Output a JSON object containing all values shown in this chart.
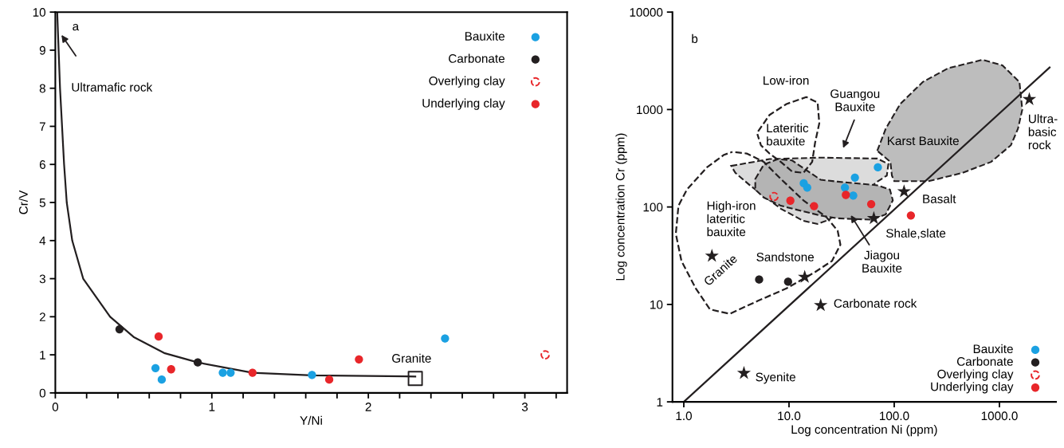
{
  "chart_data": [
    {
      "type": "scatter",
      "xlabel": "Y/Ni",
      "ylabel": "Cr/V",
      "xlim": [
        0,
        3.27
      ],
      "ylim": [
        0,
        10
      ],
      "xticks": [
        0,
        {
          "value": 0.2,
          "label": null
        },
        {
          "value": 0.4,
          "label": null
        },
        {
          "value": 0.6,
          "label": null
        },
        {
          "value": 0.8,
          "label": null
        },
        1,
        {
          "value": 1.2,
          "label": null
        },
        {
          "value": 1.4,
          "label": null
        },
        {
          "value": 1.6,
          "label": null
        },
        {
          "value": 1.8,
          "label": null
        },
        2,
        {
          "value": 2.2,
          "label": null
        },
        {
          "value": 2.4,
          "label": null
        },
        {
          "value": 2.6,
          "label": null
        },
        {
          "value": 2.8,
          "label": null
        },
        3,
        {
          "value": 3.2,
          "label": null
        }
      ],
      "yticks": [
        0,
        1,
        2,
        3,
        4,
        5,
        6,
        7,
        8,
        9,
        10
      ],
      "legend": "top right",
      "annotations": [
        "a",
        "Ultramafic rock",
        "Granite"
      ],
      "series": [
        {
          "type": "line",
          "color": "#231f20",
          "x": [
            0.012,
            0.03,
            0.056,
            0.073,
            0.108,
            0.178,
            0.35,
            0.5,
            0.7,
            0.91,
            1.26,
            1.64,
            2.3
          ],
          "values": [
            10,
            8,
            6,
            5,
            4,
            3,
            2,
            1.47,
            1.04,
            0.8,
            0.53,
            0.46,
            0.43
          ]
        },
        {
          "type": "scatter",
          "marker": "square",
          "line_style": "solid",
          "color": "#231f20",
          "x": [
            2.3
          ],
          "values": [
            0.38
          ]
        },
        {
          "name": "Bauxite",
          "marker": "circle",
          "color": "#1ba1e2",
          "x": [
            0.64,
            0.68,
            1.07,
            1.12,
            1.64,
            2.49
          ],
          "values": [
            0.65,
            0.35,
            0.53,
            0.53,
            0.47,
            1.43
          ]
        },
        {
          "name": "Carbonate",
          "marker": "circle",
          "color": "#231f20",
          "x": [
            0.41,
            0.91
          ],
          "values": [
            1.67,
            0.8
          ]
        },
        {
          "name": "Overlying clay",
          "marker": "circle",
          "color": "#e8262a",
          "line_style": "dashed",
          "x": [
            3.13
          ],
          "values": [
            1.0
          ]
        },
        {
          "name": "Underlying clay",
          "marker": "circle",
          "color": "#e8262a",
          "x": [
            0.66,
            0.74,
            1.26,
            1.75,
            1.94
          ],
          "values": [
            1.48,
            0.62,
            0.53,
            0.35,
            0.88
          ]
        }
      ]
    },
    {
      "type": "scatter",
      "xlabel": "Log concentration Ni (ppm)",
      "ylabel": "Log concentration Cr (ppm)",
      "log": "xy",
      "xlim": [
        0.78,
        3450
      ],
      "ylim": [
        1,
        10000
      ],
      "xticks": [
        {
          "value": 1,
          "label": "1.0"
        },
        {
          "value": 10,
          "label": "10.0"
        },
        {
          "value": 100,
          "label": "100.0"
        },
        {
          "value": 1000,
          "label": "1000.0"
        }
      ],
      "yticks": [
        1,
        10,
        100,
        1000,
        10000
      ],
      "legend": "bottom right",
      "annotations": [
        "b",
        "Low-iron",
        "Lateritic\nbauxite",
        "Guangou\nBauxite",
        "Karst Bauxite",
        "Ultra-\nbasic\nrock",
        "Basalt",
        "Shale,slate",
        "High-iron\nlateritic\nbauxite",
        "Granite",
        "Sandstone",
        "Jiagou\nBauxite",
        "Carbonate rock",
        "Syenite"
      ],
      "series": [
        {
          "type": "area",
          "color": "#bdbdbd",
          "line_style": "dashed",
          "x": [
            69,
            83,
            114,
            187,
            327,
            690,
            1067,
            1549,
            1649,
            1500,
            1285,
            832,
            447,
            212,
            100,
            95,
            92
          ],
          "values": [
            377,
            635,
            1140,
            1920,
            2660,
            3240,
            2840,
            1920,
            1000,
            635,
            430,
            290,
            224,
            184,
            184,
            210,
            290
          ]
        },
        {
          "type": "area",
          "color": "#dcdcdc",
          "line_style": "dashed",
          "x": [
            2.82,
            6.52,
            20,
            69,
            88,
            85,
            69,
            24,
            18.7,
            13.7,
            8.36,
            4.3,
            3.09
          ],
          "values": [
            264,
            310,
            321,
            314,
            276,
            210,
            182,
            74,
            67,
            72,
            96,
            165,
            224
          ]
        },
        {
          "type": "area",
          "color": "#b4b4b4",
          "line_style": "dashed",
          "x": [
            4.78,
            5.76,
            7.85,
            10.7,
            14.6,
            20,
            29,
            69,
            91,
            97,
            83,
            61,
            29,
            20,
            13.7,
            8.36,
            5.76,
            4.78
          ],
          "values": [
            194,
            272,
            310,
            300,
            239,
            190,
            182,
            167,
            151,
            117,
            84,
            74,
            76.5,
            81.7,
            90,
            103,
            125,
            151
          ]
        },
        {
          "type": "line",
          "color": "#231f20",
          "line_style": "dashed",
          "x": [
            5.08,
            6.52,
            9.46,
            14.6,
            18.7,
            19.4,
            17.7,
            16.6,
            13.7,
            10.7,
            8.36,
            6.52,
            5.41,
            5.0
          ],
          "values": [
            595,
            880,
            1140,
            1343,
            1178,
            723,
            458,
            290,
            224,
            231,
            290,
            354,
            430,
            560
          ]
        },
        {
          "type": "line",
          "color": "#231f20",
          "line_style": "dashed",
          "x": [
            3.09,
            3.96,
            5.76,
            8.36,
            13.7,
            22.6,
            29,
            30.8,
            25.6,
            17.7,
            9.46,
            5.08,
            2.73,
            1.77,
            1.3,
            0.95,
            0.84,
            0.89,
            1.07,
            1.66,
            2.41,
            2.9
          ],
          "values": [
            365,
            354,
            290,
            194,
            117,
            79,
            57,
            41,
            27.9,
            21.5,
            14.6,
            10.9,
            8.0,
            8.9,
            14.6,
            27.9,
            53,
            103,
            151,
            255,
            343,
            368
          ]
        },
        {
          "type": "line",
          "color": "#231f20",
          "x": [
            1,
            3000
          ],
          "values": [
            1,
            2700
          ]
        },
        {
          "type": "scatter",
          "marker": "star",
          "color": "#231f20",
          "x": [
            1923,
            124,
            64,
            1.85,
            14.1,
            20,
            3.73
          ],
          "values": [
            1273,
            144,
            76.5,
            31.4,
            19.1,
            9.8,
            1.97
          ]
        },
        {
          "name": "Bauxite",
          "marker": "circle",
          "color": "#1ba1e2",
          "x": [
            69.9,
            42.3,
            13.8,
            14.9,
            34,
            40.8
          ],
          "values": [
            255,
            200,
            175,
            158,
            158,
            131
          ]
        },
        {
          "name": "Carbonate",
          "marker": "circle",
          "color": "#231f20",
          "x": [
            5.2,
            9.8
          ],
          "values": [
            18,
            17.1
          ]
        },
        {
          "name": "Overlying clay",
          "marker": "circle",
          "color": "#e8262a",
          "line_style": "dashed",
          "x": [
            7.2
          ],
          "values": [
            128
          ]
        },
        {
          "name": "Underlying clay",
          "marker": "circle",
          "color": "#e8262a",
          "x": [
            10.3,
            17.3,
            34.7,
            60.4,
            144
          ],
          "values": [
            116,
            102,
            133,
            107,
            81.7
          ]
        }
      ]
    }
  ]
}
